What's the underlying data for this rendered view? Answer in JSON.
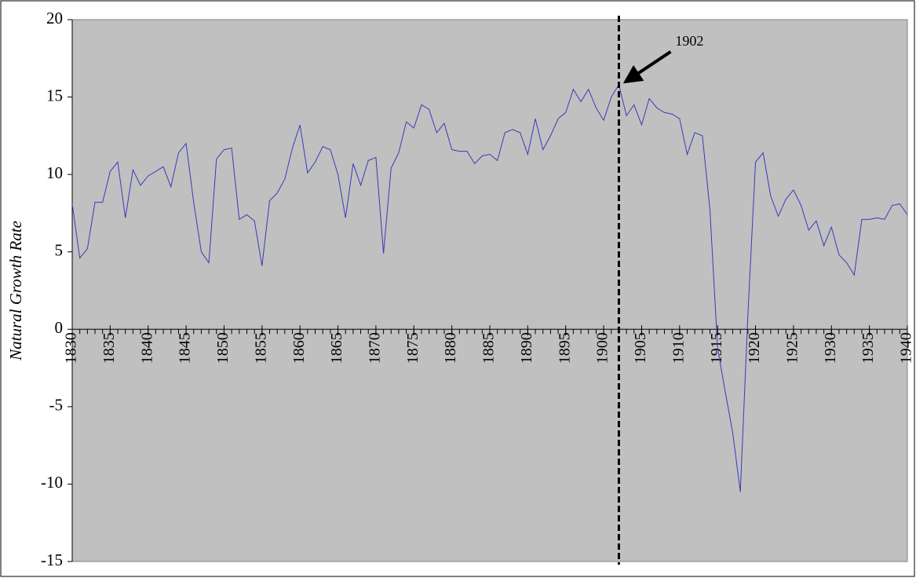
{
  "chart_data": {
    "type": "line",
    "y_label": "Natural Growth Rate",
    "x": [
      1830,
      1831,
      1832,
      1833,
      1834,
      1835,
      1836,
      1837,
      1838,
      1839,
      1840,
      1841,
      1842,
      1843,
      1844,
      1845,
      1846,
      1847,
      1848,
      1849,
      1850,
      1851,
      1852,
      1853,
      1854,
      1855,
      1856,
      1857,
      1858,
      1859,
      1860,
      1861,
      1862,
      1863,
      1864,
      1865,
      1866,
      1867,
      1868,
      1869,
      1870,
      1871,
      1872,
      1873,
      1874,
      1875,
      1876,
      1877,
      1878,
      1879,
      1880,
      1881,
      1882,
      1883,
      1884,
      1885,
      1886,
      1887,
      1888,
      1889,
      1890,
      1891,
      1892,
      1893,
      1894,
      1895,
      1896,
      1897,
      1898,
      1899,
      1900,
      1901,
      1902,
      1903,
      1904,
      1905,
      1906,
      1907,
      1908,
      1909,
      1910,
      1911,
      1912,
      1913,
      1914,
      1915,
      1916,
      1917,
      1918,
      1919,
      1920,
      1921,
      1922,
      1923,
      1924,
      1925,
      1926,
      1927,
      1928,
      1929,
      1930,
      1931,
      1932,
      1933,
      1934,
      1935,
      1936,
      1937,
      1938,
      1939,
      1940
    ],
    "series": [
      {
        "color": "#3a3ab8",
        "values": [
          8.1,
          4.6,
          5.2,
          8.2,
          8.2,
          10.2,
          10.8,
          7.2,
          10.3,
          9.3,
          9.9,
          10.2,
          10.5,
          9.2,
          11.4,
          12.0,
          8.2,
          5.0,
          4.3,
          11.0,
          11.6,
          11.7,
          7.1,
          7.4,
          7.0,
          4.1,
          8.3,
          8.8,
          9.7,
          11.7,
          13.2,
          10.1,
          10.8,
          11.8,
          11.6,
          10.0,
          7.2,
          10.7,
          9.3,
          10.9,
          11.1,
          4.9,
          10.4,
          11.4,
          13.4,
          13.0,
          14.5,
          14.2,
          12.7,
          13.3,
          11.6,
          11.5,
          11.5,
          10.7,
          11.2,
          11.3,
          10.9,
          12.7,
          12.9,
          12.7,
          11.3,
          13.6,
          11.6,
          12.5,
          13.6,
          14.0,
          15.5,
          14.7,
          15.5,
          14.3,
          13.5,
          15.0,
          15.8,
          13.8,
          14.5,
          13.2,
          14.9,
          14.3,
          14.0,
          13.9,
          13.6,
          11.3,
          12.7,
          12.5,
          7.7,
          -1.2,
          -4.0,
          -6.7,
          -10.5,
          1.0,
          10.8,
          11.4,
          8.6,
          7.3,
          8.4,
          9.0,
          8.0,
          6.4,
          7.0,
          5.4,
          6.6,
          4.8,
          4.3,
          3.5,
          7.1,
          7.1,
          7.2,
          7.1,
          8.0,
          8.1,
          7.4
        ]
      }
    ],
    "xlim": [
      1830,
      1940
    ],
    "xticks": [
      1830,
      1835,
      1840,
      1845,
      1850,
      1855,
      1860,
      1865,
      1870,
      1875,
      1880,
      1885,
      1890,
      1895,
      1900,
      1905,
      1910,
      1915,
      1920,
      1925,
      1930,
      1935,
      1940
    ],
    "ylim": [
      -15,
      20
    ],
    "yticks": [
      -15,
      -10,
      -5,
      0,
      5,
      10,
      15,
      20
    ],
    "background": "#c0c0c0",
    "annotations": [
      {
        "text": "1902",
        "x": 1902
      }
    ]
  }
}
